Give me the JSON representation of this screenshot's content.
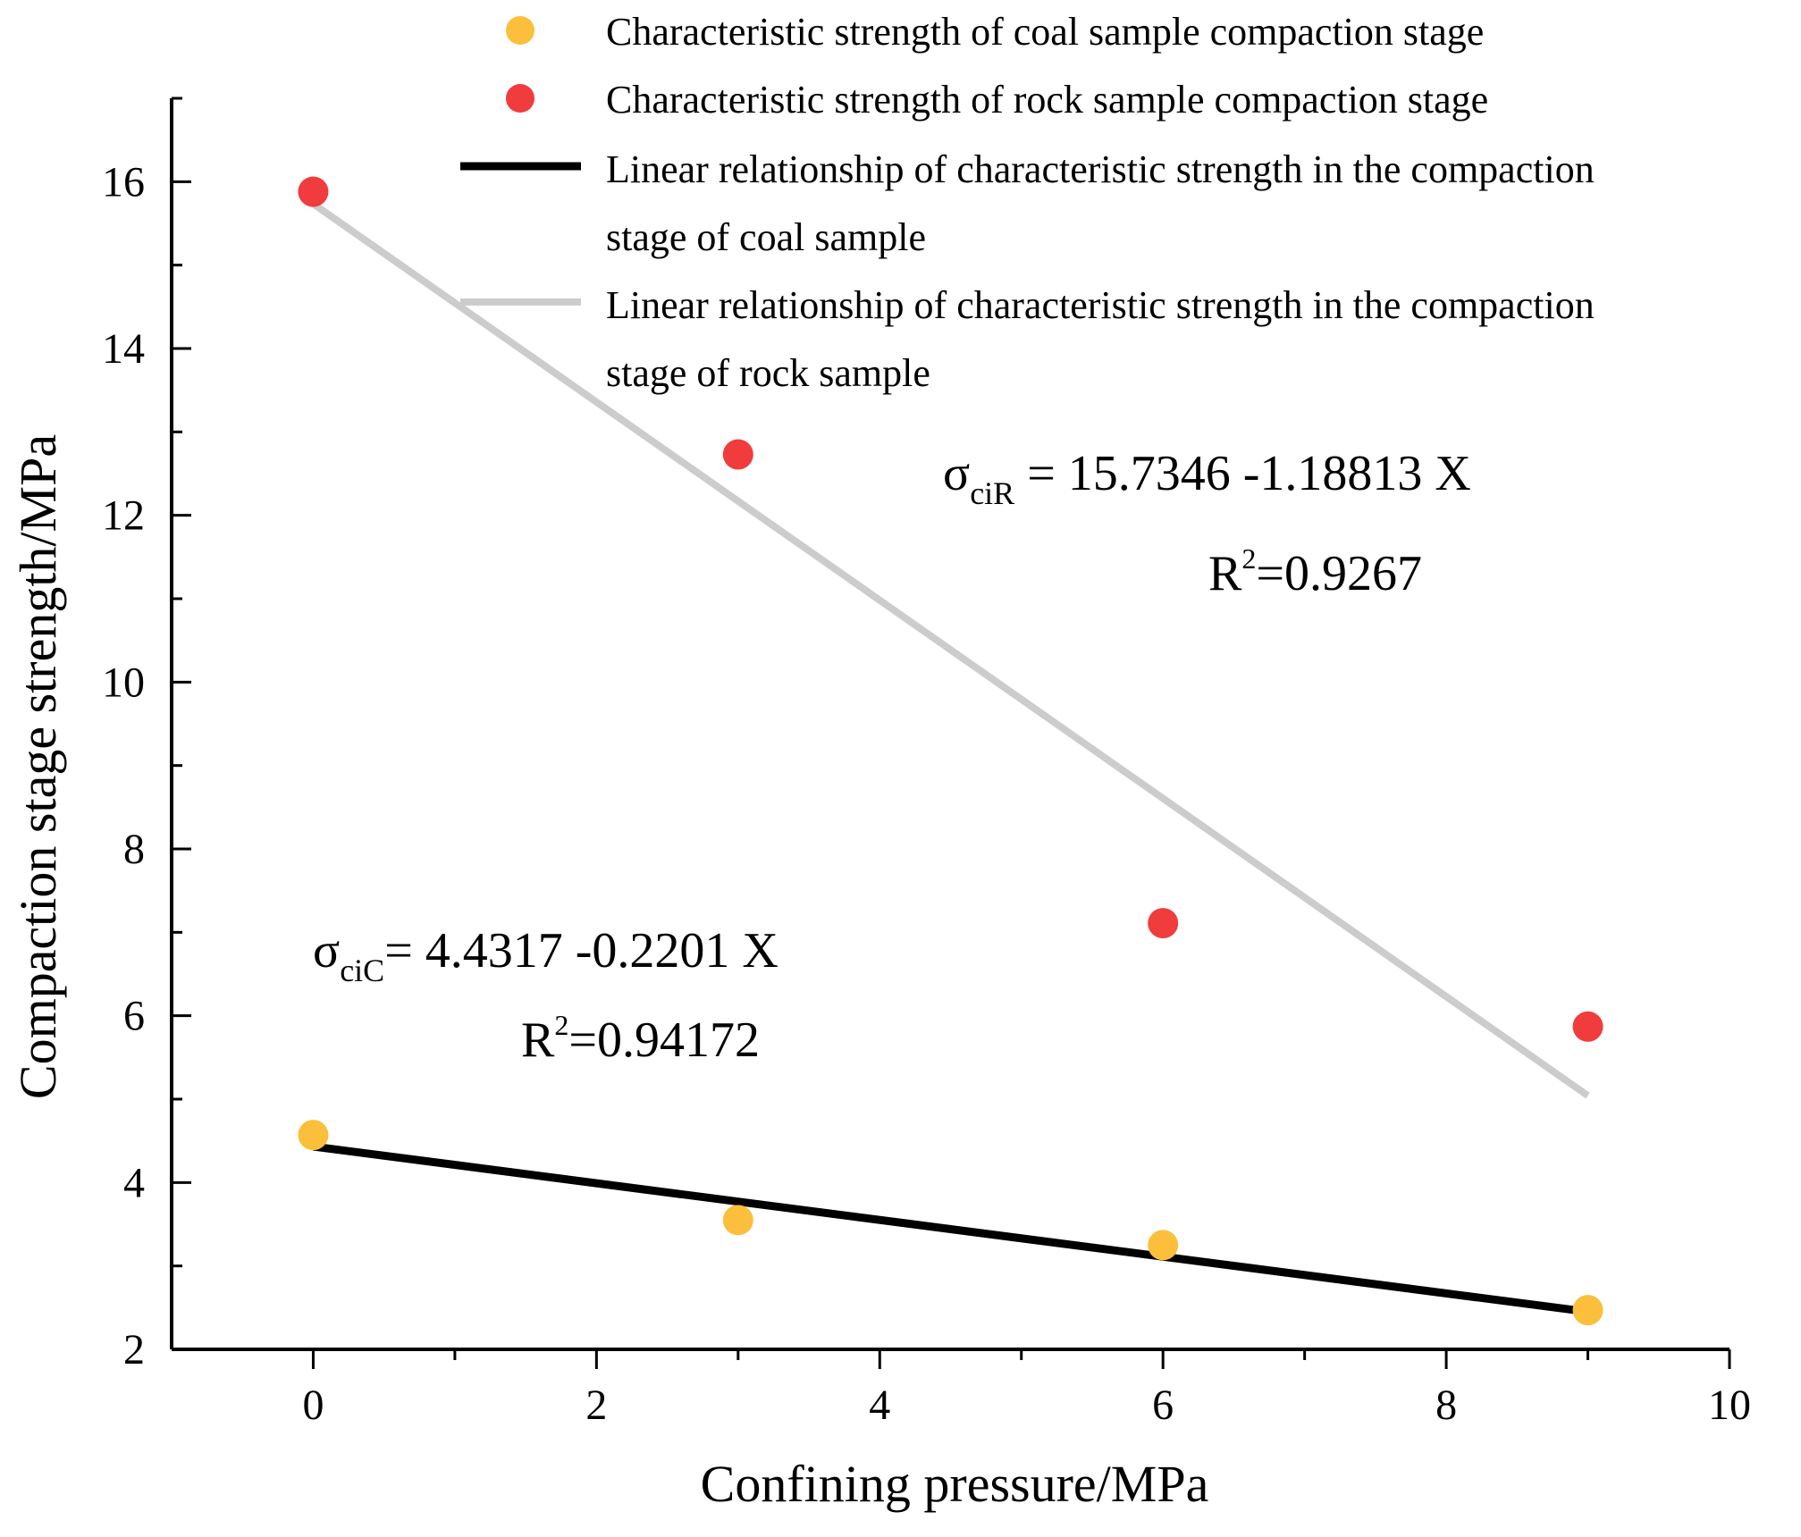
{
  "chart_data": {
    "type": "scatter",
    "xlabel": "Confining pressure/MPa",
    "ylabel": "Compaction stage strength/MPa",
    "xlim": [
      -1,
      10
    ],
    "ylim": [
      2,
      17
    ],
    "x_ticks": [
      "0",
      "2",
      "4",
      "6",
      "8",
      "10"
    ],
    "y_ticks": [
      "2",
      "4",
      "6",
      "8",
      "10",
      "12",
      "14",
      "16"
    ],
    "grid": false,
    "legend_position": "top-right",
    "series": [
      {
        "name": "Characteristic strength of coal sample compaction stage",
        "kind": "scatter",
        "color": "#fbbf3b",
        "x": [
          0,
          3,
          6,
          9
        ],
        "y": [
          4.57,
          3.55,
          3.25,
          2.47
        ]
      },
      {
        "name": "Characteristic strength of  rock sample compaction stage",
        "kind": "scatter",
        "color": "#f03c3c",
        "x": [
          0,
          3,
          6,
          9
        ],
        "y": [
          15.88,
          12.73,
          7.11,
          5.87
        ]
      },
      {
        "name_line1": "Linear relationship of characteristic strength in the compaction",
        "name_line2": "stage of coal sample",
        "kind": "line",
        "color": "#000000",
        "intercept": 4.4317,
        "slope": -0.2201,
        "x_range": [
          0,
          9
        ]
      },
      {
        "name_line1": "Linear relationship of characteristic strength in the compaction",
        "name_line2": "stage of rock sample",
        "kind": "line",
        "color": "#cccccc",
        "intercept": 15.7346,
        "slope": -1.18813,
        "x_range": [
          0,
          9
        ]
      }
    ],
    "annotations": {
      "rock_equation": {
        "sigma": "σ",
        "subscript": "ciR",
        "rhs": " = 15.7346  -1.18813 X",
        "r2_prefix": "R",
        "r2_sup": "2",
        "r2_value": "=0.9267"
      },
      "coal_equation": {
        "sigma": "σ",
        "subscript": "ciC",
        "rhs": "= 4.4317 -0.2201 X",
        "r2_prefix": "R",
        "r2_sup": "2",
        "r2_value": "=0.94172"
      }
    }
  }
}
